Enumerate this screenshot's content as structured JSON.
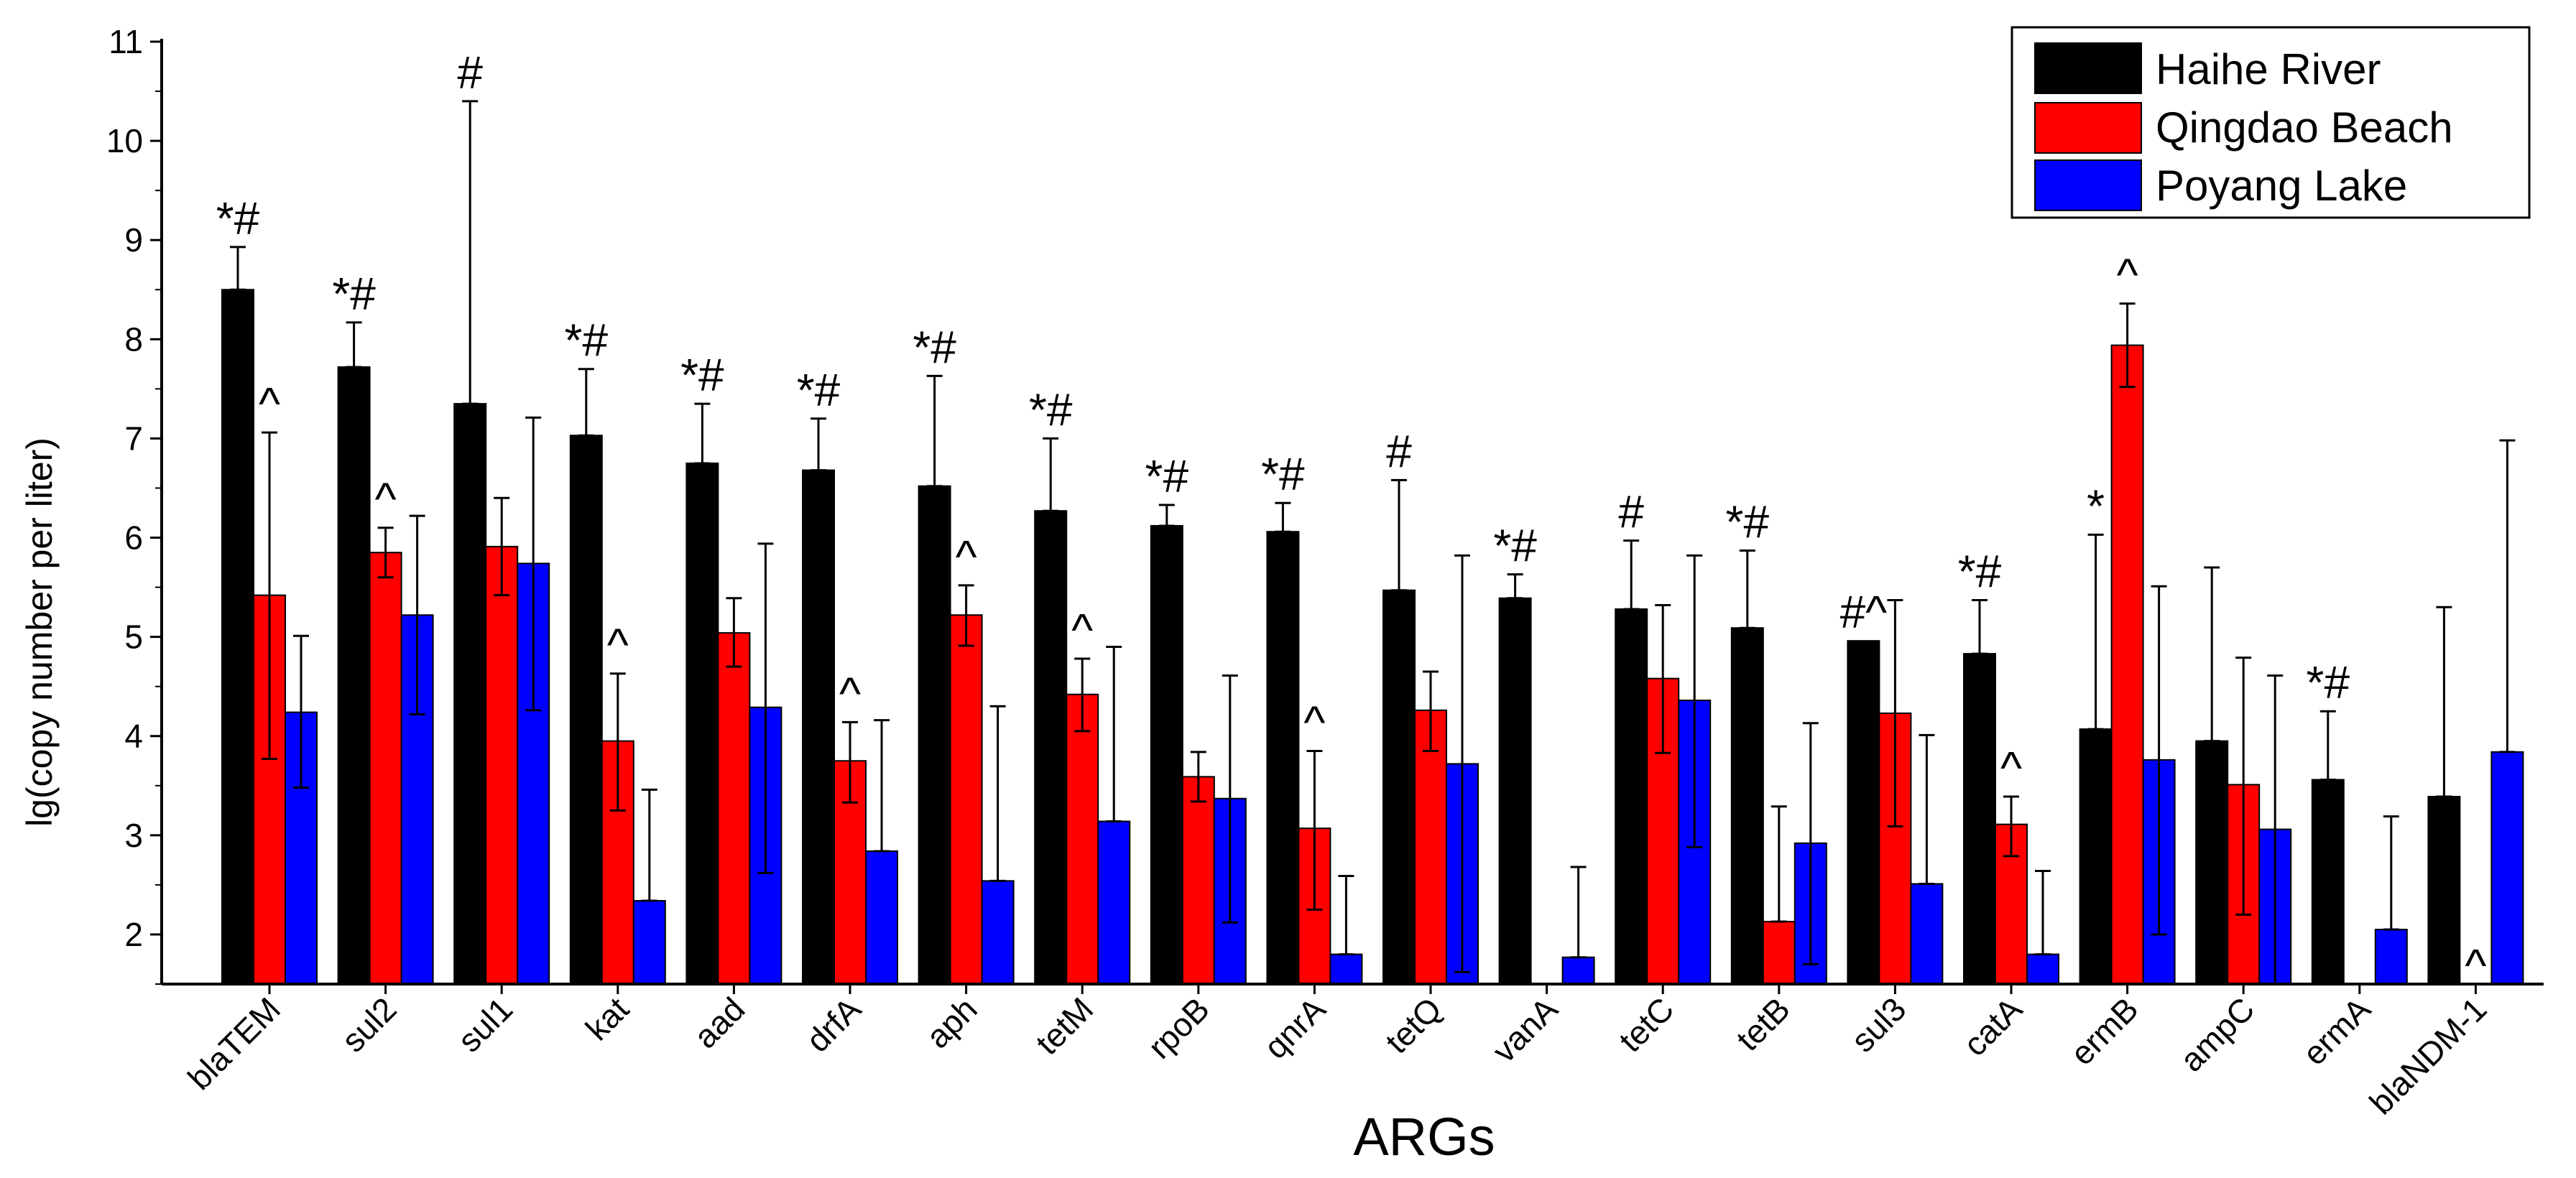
{
  "chart_data": {
    "type": "bar",
    "xlabel": "ARGs",
    "ylabel": "lg(copy number per liter)",
    "ylim": [
      1.5,
      11
    ],
    "yticks": [
      2,
      3,
      4,
      5,
      6,
      7,
      8,
      9,
      10,
      11
    ],
    "legend_position": "top-right",
    "categories": [
      "blaTEM",
      "sul2",
      "sul1",
      "kat",
      "aad",
      "drfA",
      "aph",
      "tetM",
      "rpoB",
      "qnrA",
      "tetQ",
      "vanA",
      "tetC",
      "tetB",
      "sul3",
      "catA",
      "ermB",
      "ampC",
      "ermA",
      "blaNDM-1"
    ],
    "series": [
      {
        "name": "Haihe River",
        "color": "#000000",
        "values": [
          8.5,
          7.72,
          7.35,
          7.03,
          6.75,
          6.68,
          6.52,
          6.27,
          6.12,
          6.06,
          5.47,
          5.39,
          5.28,
          5.09,
          4.96,
          4.83,
          4.07,
          3.95,
          3.56,
          3.39
        ],
        "err_upper": [
          8.93,
          8.17,
          10.4,
          7.7,
          7.35,
          7.2,
          7.63,
          7.0,
          6.33,
          6.35,
          6.58,
          5.63,
          5.97,
          5.87,
          null,
          5.37,
          6.03,
          5.7,
          4.25,
          5.3
        ],
        "err_lower": [
          8.5,
          7.72,
          7.35,
          7.03,
          6.75,
          6.68,
          6.52,
          6.27,
          6.12,
          6.06,
          5.47,
          5.39,
          5.28,
          5.09,
          4.96,
          4.83,
          4.07,
          3.95,
          3.56,
          3.39
        ],
        "annotations": [
          "*#",
          "*#",
          "#",
          "*#",
          "*#",
          "*#",
          "*#",
          "*#",
          "*#",
          "*#",
          "#",
          "*#",
          "#",
          "*#",
          "#^",
          "*#",
          "*",
          "",
          "*#",
          ""
        ]
      },
      {
        "name": "Qingdao Beach",
        "color": "#ff0000",
        "values": [
          5.42,
          5.85,
          5.91,
          3.95,
          5.04,
          3.75,
          5.22,
          4.42,
          3.59,
          3.07,
          4.26,
          null,
          4.58,
          2.13,
          4.23,
          3.11,
          7.94,
          3.51,
          null,
          null
        ],
        "err_upper": [
          7.06,
          6.1,
          6.4,
          4.63,
          5.39,
          4.14,
          5.52,
          4.78,
          3.84,
          3.85,
          4.65,
          null,
          5.32,
          3.29,
          5.37,
          3.39,
          8.36,
          4.79,
          null,
          null
        ],
        "err_lower": [
          3.77,
          5.6,
          5.42,
          3.25,
          4.7,
          3.33,
          4.91,
          4.05,
          3.34,
          2.25,
          3.85,
          null,
          3.83,
          2.13,
          3.09,
          2.79,
          7.52,
          2.2,
          null,
          null
        ],
        "annotations": [
          "^",
          "^",
          "",
          "^",
          "",
          "^",
          "^",
          "^",
          "",
          "^",
          "",
          "",
          "",
          "",
          "",
          "^",
          "^",
          "",
          "",
          "^"
        ]
      },
      {
        "name": "Poyang Lake",
        "color": "#0000ff",
        "values": [
          4.24,
          5.22,
          5.74,
          2.34,
          4.29,
          2.84,
          2.54,
          3.14,
          3.37,
          1.8,
          3.72,
          1.77,
          4.36,
          2.92,
          2.51,
          1.8,
          3.76,
          3.06,
          2.05,
          3.84
        ],
        "err_upper": [
          5.01,
          6.22,
          7.21,
          3.46,
          5.94,
          4.16,
          4.3,
          4.9,
          4.61,
          2.59,
          5.82,
          2.68,
          5.82,
          4.13,
          4.01,
          2.64,
          5.51,
          4.61,
          3.19,
          6.98
        ],
        "err_lower": [
          3.48,
          4.22,
          4.26,
          2.34,
          2.62,
          2.84,
          2.54,
          3.14,
          2.12,
          1.8,
          1.62,
          1.77,
          2.88,
          1.7,
          2.51,
          1.8,
          2.0,
          1.5,
          2.05,
          3.84
        ]
      }
    ]
  }
}
